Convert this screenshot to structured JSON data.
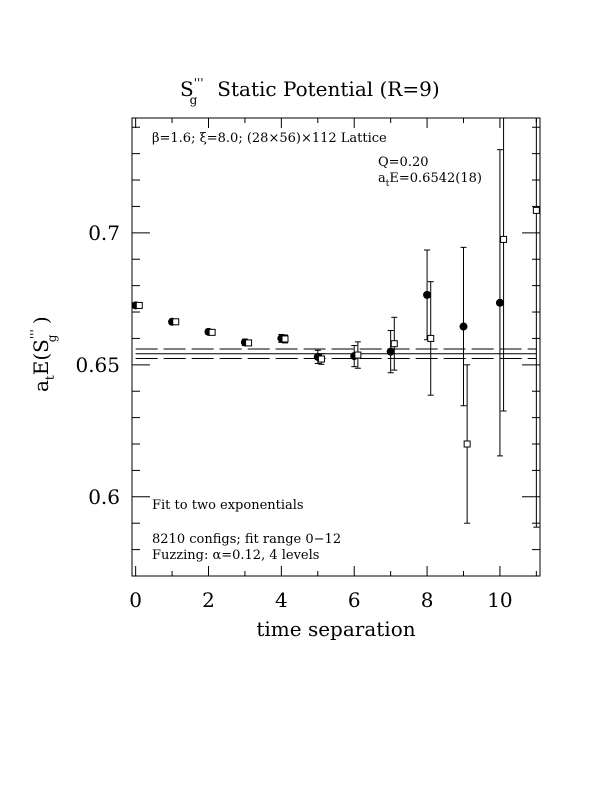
{
  "chart_data": {
    "type": "scatter",
    "title": "S_g''' Static Potential (R=9)",
    "title_parts": {
      "operator": "S",
      "operator_sub": "g",
      "operator_sup": "'''",
      "rest": "Static Potential (R=9)"
    },
    "xlabel": "time separation",
    "ylabel": "a_t E(S_g''')",
    "ylabel_parts": {
      "a": "a",
      "a_sub": "t",
      "E": "E(S",
      "sub": "g",
      "sup": "'''",
      "close": " )"
    },
    "xlim": [
      -0.1,
      11.1
    ],
    "ylim": [
      0.57,
      0.7435
    ],
    "xticks": [
      0,
      2,
      4,
      6,
      8,
      10
    ],
    "xtick_labels": [
      "0",
      "2",
      "4",
      "6",
      "8",
      "10"
    ],
    "yticks": [
      0.6,
      0.65,
      0.7
    ],
    "ytick_labels": [
      "0.6",
      "0.65",
      "0.7"
    ],
    "annotations": {
      "lattice": "β=1.6; ξ=8.0; (28×56)×112 Lattice",
      "q": "Q=0.20",
      "energy_a": "a",
      "energy_sub": "t",
      "energy_rest": "E=0.6542(18)",
      "fit": "Fit to two exponentials",
      "configs": "8210 configs; fit range 0−12",
      "fuzzing": "Fuzzing: α=0.12, 4 levels"
    },
    "fit_band": {
      "central": 0.6542,
      "error": 0.0018
    },
    "series": [
      {
        "marker": "filled-circle",
        "points": [
          {
            "x": 0,
            "y": 0.6725,
            "err": 0.001
          },
          {
            "x": 1,
            "y": 0.6663,
            "err": 0.001
          },
          {
            "x": 2,
            "y": 0.6625,
            "err": 0.001
          },
          {
            "x": 3,
            "y": 0.6585,
            "err": 0.0012
          },
          {
            "x": 4,
            "y": 0.66,
            "err": 0.0015
          },
          {
            "x": 5,
            "y": 0.653,
            "err": 0.0025
          },
          {
            "x": 6,
            "y": 0.6533,
            "err": 0.004
          },
          {
            "x": 7,
            "y": 0.655,
            "err": 0.008
          },
          {
            "x": 8,
            "y": 0.6765,
            "err": 0.017
          },
          {
            "x": 9,
            "y": 0.6645,
            "err": 0.03
          },
          {
            "x": 10,
            "y": 0.6735,
            "err": 0.058
          }
        ]
      },
      {
        "marker": "open-square",
        "points": [
          {
            "x": 0.1,
            "y": 0.6725,
            "err": 0.001
          },
          {
            "x": 1.1,
            "y": 0.6663,
            "err": 0.001
          },
          {
            "x": 2.1,
            "y": 0.6623,
            "err": 0.001
          },
          {
            "x": 3.1,
            "y": 0.6583,
            "err": 0.001
          },
          {
            "x": 4.1,
            "y": 0.6598,
            "err": 0.0015
          },
          {
            "x": 5.1,
            "y": 0.6522,
            "err": 0.002
          },
          {
            "x": 6.1,
            "y": 0.6537,
            "err": 0.005
          },
          {
            "x": 7.1,
            "y": 0.658,
            "err": 0.01
          },
          {
            "x": 8.1,
            "y": 0.66,
            "err": 0.0215
          },
          {
            "x": 9.1,
            "y": 0.62,
            "err": 0.03
          },
          {
            "x": 10.1,
            "y": 0.6975,
            "err": 0.065
          },
          {
            "x": 11.0,
            "y": 0.7085,
            "err": 0.12
          }
        ]
      }
    ]
  }
}
